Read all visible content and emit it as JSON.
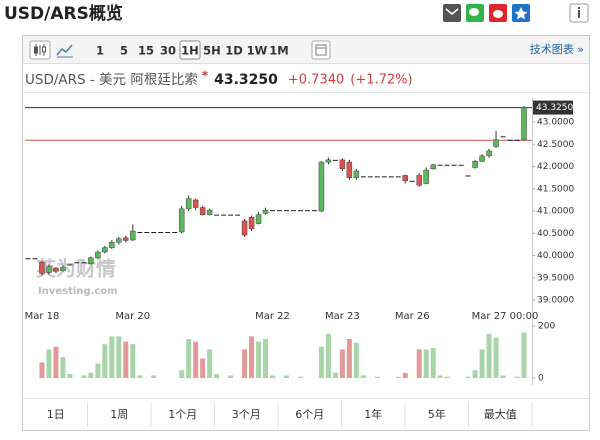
{
  "header": {
    "title": "USD/ARS概览"
  },
  "toolbar": {
    "timeframes": [
      "1",
      "5",
      "15",
      "30",
      "1H",
      "5H",
      "1D",
      "1W",
      "1M"
    ],
    "active": 4,
    "tech_link": "技术图表 »"
  },
  "quote": {
    "name": "USD/ARS - 美元 阿根廷比索",
    "marker": "*",
    "price": "43.3250",
    "change": "+0.7340",
    "change_pct": "(+1.72%)"
  },
  "watermark": [
    "英为财情",
    "Investing.com"
  ],
  "chart_data": {
    "type": "candlestick",
    "categories": [
      null,
      null,
      "Mar 18",
      null,
      null,
      null,
      null,
      null,
      null,
      null,
      null,
      null,
      null,
      null,
      null,
      "Mar 20",
      null,
      null,
      null,
      null,
      null,
      null,
      null,
      null,
      null,
      null,
      null,
      null,
      null,
      null,
      null,
      null,
      null,
      null,
      null,
      "Mar 22",
      null,
      null,
      null,
      null,
      null,
      null,
      null,
      null,
      null,
      "Mar 23",
      null,
      null,
      null,
      null,
      null,
      null,
      null,
      null,
      null,
      "Mar 26",
      null,
      null,
      null,
      null,
      null,
      null,
      null,
      null,
      null,
      null,
      "Mar 27",
      null,
      null,
      null,
      null,
      "00:00"
    ],
    "open": [
      39.94,
      39.94,
      39.85,
      39.62,
      39.72,
      39.66,
      39.8,
      39.85,
      39.85,
      39.82,
      39.95,
      40.08,
      40.18,
      40.3,
      40.4,
      40.35,
      40.53,
      40.53,
      40.53,
      40.53,
      40.53,
      40.53,
      40.53,
      41.05,
      41.25,
      41.08,
      40.92,
      40.92,
      40.92,
      40.92,
      40.92,
      40.78,
      40.86,
      40.72,
      40.95,
      41.02,
      41.02,
      41.02,
      41.02,
      41.02,
      41.02,
      41.02,
      41.0,
      42.1,
      42.15,
      42.15,
      42.1,
      41.75,
      41.78,
      41.78,
      41.78,
      41.78,
      41.78,
      41.78,
      41.8,
      41.68,
      41.8,
      41.62,
      41.95,
      42.04,
      42.04,
      42.04,
      42.04,
      41.8,
      41.98,
      42.12,
      42.24,
      42.45,
      42.68,
      42.6,
      42.6,
      42.6
    ],
    "high": [
      39.94,
      39.94,
      39.88,
      39.8,
      39.74,
      39.78,
      39.8,
      39.85,
      39.85,
      39.98,
      40.12,
      40.22,
      40.35,
      40.42,
      40.45,
      40.7,
      40.53,
      40.53,
      40.53,
      40.53,
      40.53,
      40.53,
      41.12,
      41.35,
      41.28,
      41.12,
      41.05,
      40.92,
      40.92,
      40.92,
      40.92,
      40.82,
      40.9,
      40.98,
      41.08,
      41.02,
      41.02,
      41.02,
      41.02,
      41.02,
      41.02,
      41.02,
      42.12,
      42.2,
      42.15,
      42.18,
      42.15,
      41.95,
      41.78,
      41.78,
      41.78,
      41.78,
      41.78,
      41.78,
      41.82,
      41.68,
      41.85,
      41.98,
      42.06,
      42.04,
      42.04,
      42.04,
      42.04,
      41.8,
      42.15,
      42.28,
      42.4,
      42.8,
      42.68,
      42.6,
      42.6,
      43.36
    ],
    "low": [
      39.94,
      39.94,
      39.55,
      39.58,
      39.6,
      39.64,
      39.8,
      39.85,
      39.85,
      39.8,
      39.92,
      40.05,
      40.15,
      40.25,
      40.3,
      40.33,
      40.53,
      40.53,
      40.53,
      40.53,
      40.53,
      40.53,
      40.5,
      41.0,
      41.02,
      40.9,
      40.9,
      40.92,
      40.92,
      40.92,
      40.92,
      40.42,
      40.55,
      40.7,
      40.92,
      41.02,
      41.02,
      41.02,
      41.02,
      41.02,
      41.02,
      41.02,
      40.98,
      42.05,
      42.15,
      41.9,
      41.7,
      41.7,
      41.78,
      41.78,
      41.78,
      41.78,
      41.78,
      41.78,
      41.62,
      41.68,
      41.55,
      41.6,
      41.93,
      42.04,
      42.04,
      42.04,
      42.04,
      41.8,
      41.95,
      42.1,
      42.2,
      42.42,
      42.68,
      42.6,
      42.6,
      42.58
    ],
    "close": [
      39.94,
      39.94,
      39.6,
      39.75,
      39.65,
      39.74,
      39.8,
      39.85,
      39.85,
      39.95,
      40.08,
      40.18,
      40.3,
      40.38,
      40.34,
      40.55,
      40.53,
      40.53,
      40.53,
      40.53,
      40.53,
      40.53,
      41.05,
      41.28,
      41.08,
      40.92,
      41.02,
      40.92,
      40.92,
      40.92,
      40.92,
      40.46,
      40.6,
      40.92,
      41.02,
      41.02,
      41.02,
      41.02,
      41.02,
      41.02,
      41.02,
      41.02,
      42.1,
      42.15,
      42.15,
      41.95,
      41.75,
      41.9,
      41.78,
      41.78,
      41.78,
      41.78,
      41.78,
      41.78,
      41.68,
      41.68,
      41.58,
      41.92,
      42.04,
      42.04,
      42.04,
      42.04,
      42.04,
      41.8,
      42.12,
      42.24,
      42.35,
      42.6,
      42.68,
      42.6,
      42.6,
      43.325
    ],
    "ylim": [
      38.89,
      43.54
    ],
    "yticks": [
      {
        "value": 39,
        "label": "39.0000"
      },
      {
        "value": 39.5,
        "label": "39.5000"
      },
      {
        "value": 40,
        "label": "40.0000"
      },
      {
        "value": 40.5,
        "label": "40.5000"
      },
      {
        "value": 41,
        "label": "41.0000"
      },
      {
        "value": 41.5,
        "label": "41.5000"
      },
      {
        "value": 42,
        "label": "42.0000"
      },
      {
        "value": 42.5,
        "label": "42.5000"
      },
      {
        "value": 43,
        "label": "43.0000"
      }
    ],
    "last": {
      "value": 43.325,
      "label": "43.3250"
    },
    "prev_close": 42.59,
    "up_color": "#5cb85c",
    "down_color": "#d9534f",
    "volume": [
      0,
      0,
      60,
      110,
      120,
      80,
      15,
      0,
      10,
      20,
      55,
      130,
      160,
      160,
      140,
      130,
      10,
      0,
      10,
      0,
      0,
      0,
      30,
      150,
      140,
      75,
      110,
      15,
      0,
      10,
      0,
      110,
      160,
      140,
      150,
      10,
      0,
      10,
      0,
      5,
      0,
      0,
      120,
      170,
      20,
      110,
      150,
      135,
      10,
      0,
      5,
      0,
      0,
      5,
      20,
      0,
      110,
      110,
      115,
      10,
      5,
      0,
      0,
      5,
      30,
      110,
      170,
      155,
      10,
      0,
      5,
      175
    ],
    "volume_ylim": [
      0,
      215
    ],
    "volume_yticks": [
      0,
      200
    ]
  },
  "ranges": [
    "1日",
    "1周",
    "1个月",
    "3个月",
    "6个月",
    "1年",
    "5年",
    "最大值"
  ]
}
